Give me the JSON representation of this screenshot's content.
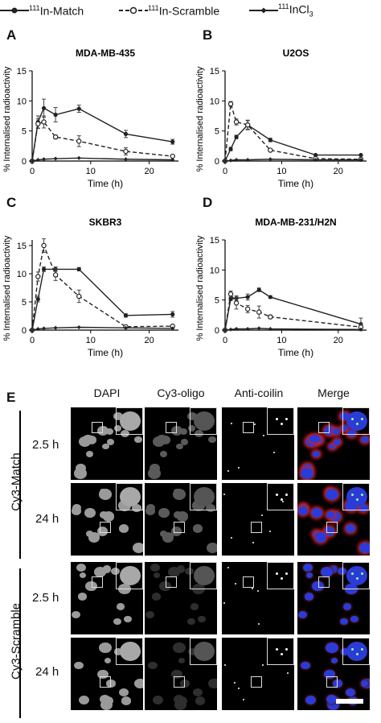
{
  "legend": [
    {
      "sup": "111",
      "text": "In-Match",
      "style": "solid-filled"
    },
    {
      "sup": "111",
      "text": "In-Scramble",
      "style": "dashed-open"
    },
    {
      "sup": "111",
      "text": "InCl",
      "sub": "3",
      "style": "solid-diamond"
    }
  ],
  "colors": {
    "line": "#222222",
    "nucleus_blue": "#2b3bd6",
    "cy3_red": "#d02020"
  },
  "chart_data": [
    {
      "panel": "A",
      "type": "line",
      "title": "MDA-MB-435",
      "xlabel": "Time (h)",
      "ylabel": "% Internalised radioactivity",
      "xlim": [
        0,
        25
      ],
      "ylim": [
        0,
        15
      ],
      "xticks": [
        0,
        10,
        20
      ],
      "yticks": [
        0,
        5,
        10,
        15
      ],
      "series": [
        {
          "name": "111In-Match",
          "x": [
            0,
            1,
            2,
            4,
            8,
            16,
            24
          ],
          "y": [
            0,
            6.5,
            8.8,
            7.7,
            8.7,
            4.5,
            3.2
          ],
          "err": [
            0,
            1.0,
            1.5,
            1.2,
            0.6,
            0.6,
            0.4
          ]
        },
        {
          "name": "111In-Scramble",
          "x": [
            0,
            1,
            2,
            4,
            8,
            16,
            24
          ],
          "y": [
            0,
            6.2,
            6.5,
            4.0,
            3.3,
            1.6,
            0.8
          ],
          "err": [
            0,
            0.8,
            1.0,
            0.3,
            0.9,
            0.6,
            0.2
          ]
        },
        {
          "name": "111InCl3",
          "x": [
            0,
            1,
            2,
            4,
            8,
            16,
            24
          ],
          "y": [
            0,
            0.2,
            0.3,
            0.4,
            0.5,
            0.3,
            0.2
          ],
          "err": [
            0,
            0,
            0,
            0,
            0,
            0,
            0
          ]
        }
      ]
    },
    {
      "panel": "B",
      "type": "line",
      "title": "U2OS",
      "xlabel": "Time (h)",
      "ylabel": "% Internalised radioactivity",
      "xlim": [
        0,
        25
      ],
      "ylim": [
        0,
        15
      ],
      "xticks": [
        0,
        10,
        20
      ],
      "yticks": [
        0,
        5,
        10,
        15
      ],
      "series": [
        {
          "name": "111In-Match",
          "x": [
            0,
            1,
            2,
            4,
            8,
            16,
            24
          ],
          "y": [
            0,
            2.0,
            4.0,
            6.0,
            3.5,
            1.0,
            1.0
          ],
          "err": [
            0,
            0.3,
            0.3,
            0.7,
            0.3,
            0.1,
            0.1
          ]
        },
        {
          "name": "111In-Scramble",
          "x": [
            0,
            1,
            2,
            4,
            8,
            16,
            24
          ],
          "y": [
            0,
            9.5,
            6.5,
            6.0,
            1.8,
            0.4,
            0.3
          ],
          "err": [
            0,
            0.4,
            0.5,
            0.8,
            0.2,
            0.1,
            0.1
          ]
        },
        {
          "name": "111InCl3",
          "x": [
            0,
            1,
            2,
            4,
            8,
            16,
            24
          ],
          "y": [
            0,
            0.1,
            0.2,
            0.2,
            0.3,
            0.2,
            0.2
          ],
          "err": [
            0,
            0,
            0,
            0,
            0,
            0,
            0
          ]
        }
      ]
    },
    {
      "panel": "C",
      "type": "line",
      "title": "SKBR3",
      "xlabel": "Time (h)",
      "ylabel": "% Internalised radioactivity",
      "xlim": [
        0,
        25
      ],
      "ylim": [
        0,
        16
      ],
      "xticks": [
        0,
        10,
        20
      ],
      "yticks": [
        0,
        5,
        10,
        15
      ],
      "series": [
        {
          "name": "111In-Match",
          "x": [
            0,
            1,
            2,
            4,
            8,
            16,
            24
          ],
          "y": [
            0,
            5.5,
            10.8,
            10.8,
            10.8,
            2.6,
            2.8
          ],
          "err": [
            0,
            0.5,
            0.4,
            0.4,
            0.3,
            0.3,
            0.5
          ]
        },
        {
          "name": "111In-Scramble",
          "x": [
            0,
            1,
            2,
            4,
            8,
            16,
            24
          ],
          "y": [
            0,
            9.5,
            15.0,
            9.8,
            6.0,
            0.6,
            0.7
          ],
          "err": [
            0,
            0.8,
            1.2,
            1.0,
            1.1,
            0.2,
            0.2
          ]
        },
        {
          "name": "111InCl3",
          "x": [
            0,
            1,
            2,
            4,
            8,
            16,
            24
          ],
          "y": [
            0,
            0.2,
            0.3,
            0.4,
            0.5,
            0.4,
            0.3
          ],
          "err": [
            0,
            0,
            0,
            0,
            0,
            0,
            0
          ]
        }
      ]
    },
    {
      "panel": "D",
      "type": "line",
      "title": "MDA-MB-231/H2N",
      "xlabel": "Time (h)",
      "ylabel": "% Internalised radioactivity",
      "xlim": [
        0,
        25
      ],
      "ylim": [
        0,
        15
      ],
      "xticks": [
        0,
        10,
        20
      ],
      "yticks": [
        0,
        5,
        10,
        15
      ],
      "series": [
        {
          "name": "111In-Match",
          "x": [
            0,
            1,
            2,
            4,
            6,
            8,
            24
          ],
          "y": [
            0,
            5.2,
            5.3,
            5.5,
            6.7,
            5.5,
            1.0
          ],
          "err": [
            0,
            0.3,
            0.4,
            0.5,
            0.3,
            0.2,
            1.0
          ]
        },
        {
          "name": "111In-Scramble",
          "x": [
            0,
            1,
            2,
            4,
            6,
            8,
            24
          ],
          "y": [
            0,
            6.0,
            4.5,
            3.5,
            3.0,
            2.2,
            0.5
          ],
          "err": [
            0,
            0.5,
            1.0,
            0.6,
            1.0,
            0.3,
            0.6
          ]
        },
        {
          "name": "111InCl3",
          "x": [
            0,
            1,
            2,
            4,
            6,
            8,
            24
          ],
          "y": [
            0,
            0.1,
            0.2,
            0.2,
            0.3,
            0.2,
            0.1
          ],
          "err": [
            0,
            0,
            0,
            0,
            0,
            0,
            0
          ]
        }
      ]
    }
  ],
  "panel_e": {
    "letter": "E",
    "columns": [
      "DAPI",
      "Cy3-oligo",
      "Anti-coilin",
      "Merge"
    ],
    "groups": [
      {
        "name": "Cy3-Match",
        "rows": [
          "2.5 h",
          "24 h"
        ]
      },
      {
        "name": "Cy3-Scramble",
        "rows": [
          "2.5 h",
          "24 h"
        ]
      }
    ]
  }
}
